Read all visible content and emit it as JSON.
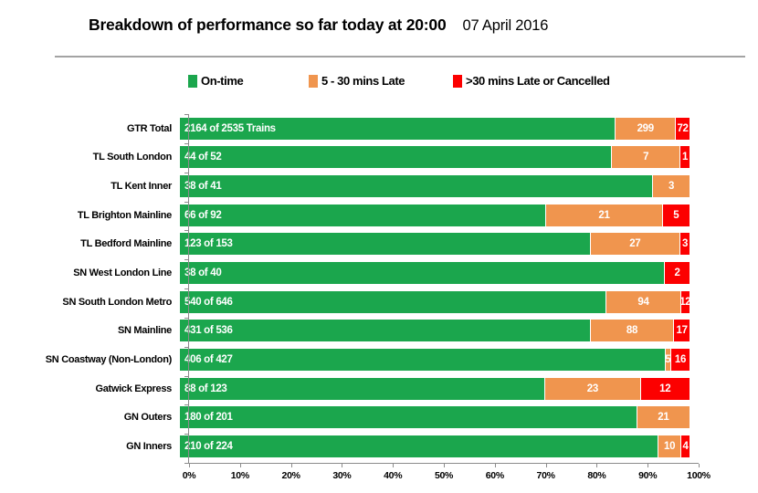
{
  "header": {
    "title": "Breakdown of performance so far today at 20:00",
    "date": "07 April 2016"
  },
  "legend": [
    {
      "label": "On-time",
      "color": "#1ba64d"
    },
    {
      "label": "5 - 30 mins Late",
      "color": "#f0954e"
    },
    {
      "label": ">30 mins Late or Cancelled",
      "color": "#fc0000"
    }
  ],
  "colors": {
    "on_time": "#1ba64d",
    "late_5_30": "#f0954e",
    "late_30_or_cancelled": "#fc0000",
    "axis": "#8c8c8c",
    "divider": "#a3a3a3",
    "bar_value_text": "#ffffff"
  },
  "chart_data": {
    "type": "bar",
    "orientation": "horizontal",
    "stacked": true,
    "stacked_as": "percent_of_total",
    "title": "Breakdown of performance so far today at 20:00",
    "subtitle": "07 April 2016",
    "legend_position": "top",
    "grid": false,
    "xlim": [
      0,
      100
    ],
    "x_tick_labels": [
      "0%",
      "10%",
      "20%",
      "30%",
      "40%",
      "50%",
      "60%",
      "70%",
      "80%",
      "90%",
      "100%"
    ],
    "categories": [
      "GTR Total",
      "TL South London",
      "TL Kent Inner",
      "TL Brighton Mainline",
      "TL Bedford Mainline",
      "SN West London Line",
      "SN South London Metro",
      "SN Mainline",
      "SN Coastway (Non-London)",
      "Gatwick Express",
      "GN Outers",
      "GN Inners"
    ],
    "totals": [
      2535,
      52,
      41,
      92,
      153,
      40,
      646,
      536,
      427,
      123,
      201,
      224
    ],
    "series": [
      {
        "name": "On-time",
        "values": [
          2164,
          44,
          38,
          66,
          123,
          38,
          540,
          431,
          406,
          88,
          180,
          210
        ],
        "bar_labels": [
          "2164 of 2535 Trains",
          "44 of 52",
          "38 of 41",
          "66 of 92",
          "123 of 153",
          "38 of 40",
          "540 of 646",
          "431 of 536",
          "406 of 427",
          "88 of 123",
          "180 of 201",
          "210 of 224"
        ]
      },
      {
        "name": "5 - 30 mins Late",
        "values": [
          299,
          7,
          3,
          21,
          27,
          0,
          94,
          88,
          5,
          23,
          21,
          10
        ]
      },
      {
        "name": ">30 mins Late or Cancelled",
        "values": [
          72,
          1,
          0,
          5,
          3,
          2,
          12,
          17,
          16,
          12,
          0,
          4
        ]
      }
    ]
  }
}
